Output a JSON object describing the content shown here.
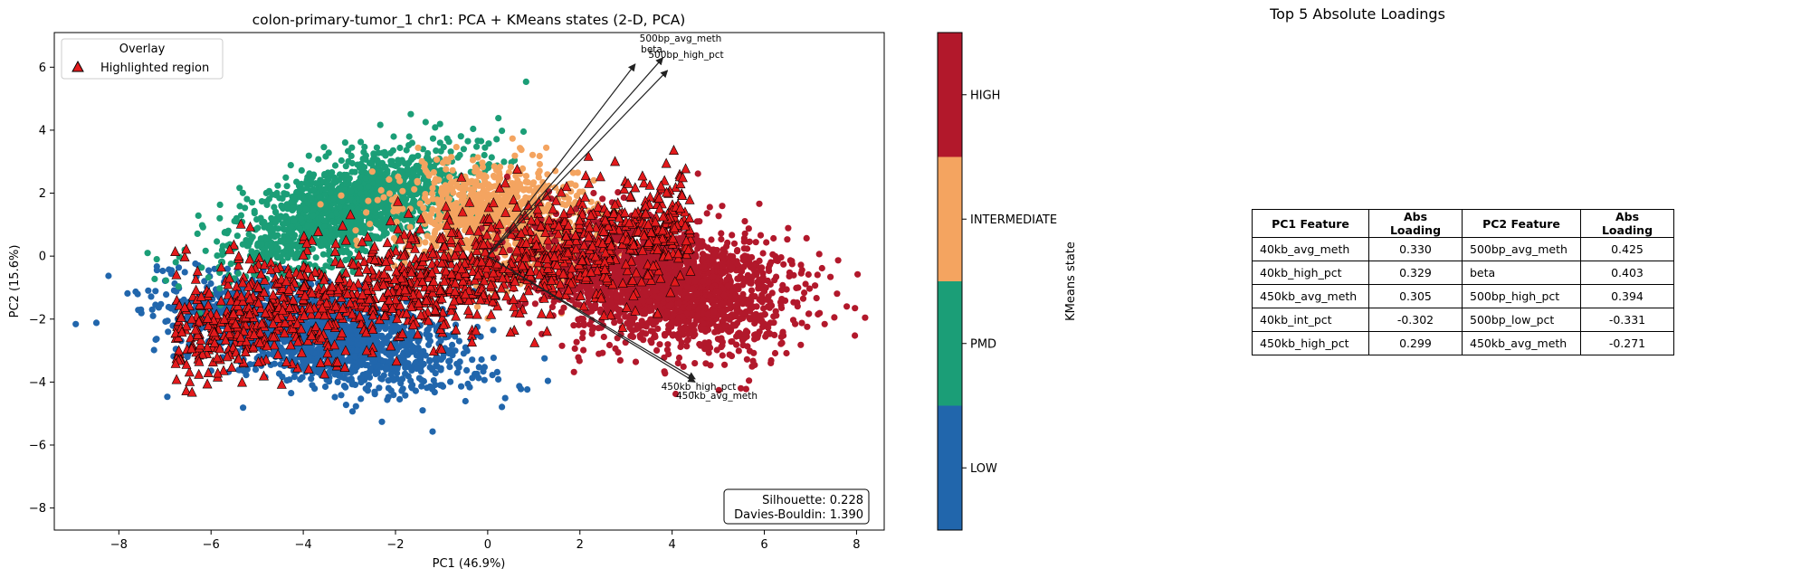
{
  "chart_data": {
    "type": "scatter",
    "title": "colon-primary-tumor_1 chr1: PCA + KMeans states (2-D, PCA)",
    "xlabel": "PC1 (46.9%)",
    "ylabel": "PC2 (15.6%)",
    "xlim": [
      -9.4,
      8.6
    ],
    "ylim": [
      -8.7,
      7.1
    ],
    "xticks": [
      -8,
      -6,
      -4,
      -2,
      0,
      2,
      4,
      6,
      8
    ],
    "yticks": [
      -8,
      -6,
      -4,
      -2,
      0,
      2,
      4,
      6
    ],
    "tick_labels_x": [
      "−8",
      "−6",
      "−4",
      "−2",
      "0",
      "2",
      "4",
      "6",
      "8"
    ],
    "tick_labels_y": [
      "−8",
      "−6",
      "−4",
      "−2",
      "0",
      "2",
      "4",
      "6"
    ],
    "grid": false,
    "legend": {
      "title": "Overlay",
      "placement": "top-left",
      "entries": [
        {
          "label": "Highlighted region",
          "marker": "triangle",
          "color": "#e31a1c"
        }
      ]
    },
    "series": [
      {
        "state": "LOW",
        "color": "#2166ac"
      },
      {
        "state": "PMD",
        "color": "#1b9e77"
      },
      {
        "state": "INTERMEDIATE",
        "color": "#f4a460"
      },
      {
        "state": "HIGH",
        "color": "#b2182b"
      },
      {
        "name": "Highlighted region",
        "color": "#e31a1c",
        "marker": "triangle"
      }
    ],
    "loading_arrows": [
      {
        "label": "500bp_avg_meth",
        "x": 3.2,
        "y": 6.1
      },
      {
        "label": "beta",
        "x": 3.8,
        "y": 6.3
      },
      {
        "label": "500bp_high_pct",
        "x": 3.9,
        "y": 5.9
      },
      {
        "label": "450kb_high_pct",
        "x": 4.5,
        "y": -3.9
      },
      {
        "label": "450kb_avg_meth",
        "x": 4.5,
        "y": -4.0
      }
    ],
    "stats_box": {
      "silhouette": "Silhouette: 0.228",
      "davies_bouldin": "Davies-Bouldin: 1.390"
    },
    "colorbar": {
      "label": "KMeans state",
      "ticks": [
        "LOW",
        "PMD",
        "INTERMEDIATE",
        "HIGH"
      ],
      "colors": [
        "#2166ac",
        "#1b9e77",
        "#f4a460",
        "#b2182b"
      ]
    }
  },
  "loadings_table": {
    "title": "Top 5 Absolute Loadings",
    "headers": [
      "PC1 Feature",
      "Abs Loading",
      "PC2 Feature",
      "Abs Loading"
    ],
    "rows": [
      [
        "40kb_avg_meth",
        "0.330",
        "500bp_avg_meth",
        "0.425"
      ],
      [
        "40kb_high_pct",
        "0.329",
        "beta",
        "0.403"
      ],
      [
        "450kb_avg_meth",
        "0.305",
        "500bp_high_pct",
        "0.394"
      ],
      [
        "40kb_int_pct",
        "-0.302",
        "500bp_low_pct",
        "-0.331"
      ],
      [
        "450kb_high_pct",
        "0.299",
        "450kb_avg_meth",
        "-0.271"
      ]
    ]
  }
}
